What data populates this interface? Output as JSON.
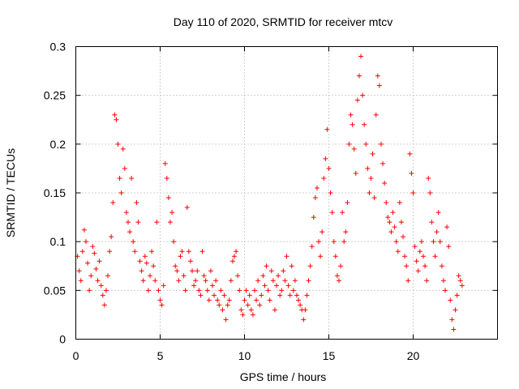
{
  "chart_data": {
    "type": "scatter",
    "title": "Day 110 of 2020, SRMTID for receiver mtcv",
    "xlabel": "GPS time / hours",
    "ylabel": "SRMTID / TECUs",
    "xlim": [
      0,
      25
    ],
    "ylim": [
      0,
      0.3
    ],
    "xticks": [
      0,
      5,
      10,
      15,
      20
    ],
    "xtick_labels": [
      "0",
      "5",
      "10",
      "15",
      "20"
    ],
    "yticks": [
      0,
      0.05,
      0.1,
      0.15,
      0.2,
      0.25,
      0.3
    ],
    "ytick_labels": [
      "0",
      "0.05",
      "0.1",
      "0.15",
      "0.2",
      "0.25",
      "0.3"
    ],
    "grid": true,
    "marker": "+",
    "color": "#ff0000",
    "series": [
      {
        "name": "SRMTID",
        "points": [
          [
            0.1,
            0.085
          ],
          [
            0.2,
            0.07
          ],
          [
            0.3,
            0.06
          ],
          [
            0.4,
            0.09
          ],
          [
            0.5,
            0.112
          ],
          [
            0.6,
            0.1
          ],
          [
            0.7,
            0.078
          ],
          [
            0.8,
            0.05
          ],
          [
            0.9,
            0.065
          ],
          [
            1.0,
            0.095
          ],
          [
            1.1,
            0.088
          ],
          [
            1.2,
            0.072
          ],
          [
            1.3,
            0.06
          ],
          [
            1.4,
            0.08
          ],
          [
            1.5,
            0.055
          ],
          [
            1.6,
            0.045
          ],
          [
            1.7,
            0.035
          ],
          [
            1.8,
            0.05
          ],
          [
            1.9,
            0.065
          ],
          [
            2.0,
            0.09
          ],
          [
            2.1,
            0.105
          ],
          [
            2.2,
            0.14
          ],
          [
            2.3,
            0.23
          ],
          [
            2.4,
            0.225
          ],
          [
            2.5,
            0.2
          ],
          [
            2.6,
            0.165
          ],
          [
            2.7,
            0.15
          ],
          [
            2.8,
            0.195
          ],
          [
            2.9,
            0.175
          ],
          [
            3.0,
            0.13
          ],
          [
            3.1,
            0.12
          ],
          [
            3.2,
            0.11
          ],
          [
            3.3,
            0.165
          ],
          [
            3.4,
            0.1
          ],
          [
            3.5,
            0.09
          ],
          [
            3.6,
            0.14
          ],
          [
            3.7,
            0.12
          ],
          [
            3.8,
            0.08
          ],
          [
            3.9,
            0.07
          ],
          [
            4.0,
            0.06
          ],
          [
            4.1,
            0.085
          ],
          [
            4.2,
            0.078
          ],
          [
            4.3,
            0.05
          ],
          [
            4.4,
            0.065
          ],
          [
            4.5,
            0.09
          ],
          [
            4.6,
            0.075
          ],
          [
            4.7,
            0.06
          ],
          [
            4.8,
            0.12
          ],
          [
            4.9,
            0.05
          ],
          [
            5.0,
            0.04
          ],
          [
            5.1,
            0.035
          ],
          [
            5.2,
            0.055
          ],
          [
            5.3,
            0.18
          ],
          [
            5.4,
            0.165
          ],
          [
            5.5,
            0.145
          ],
          [
            5.6,
            0.12
          ],
          [
            5.7,
            0.13
          ],
          [
            5.8,
            0.1
          ],
          [
            5.9,
            0.075
          ],
          [
            6.0,
            0.07
          ],
          [
            6.1,
            0.06
          ],
          [
            6.2,
            0.085
          ],
          [
            6.3,
            0.09
          ],
          [
            6.4,
            0.065
          ],
          [
            6.5,
            0.05
          ],
          [
            6.6,
            0.135
          ],
          [
            6.7,
            0.09
          ],
          [
            6.8,
            0.08
          ],
          [
            6.9,
            0.07
          ],
          [
            7.0,
            0.055
          ],
          [
            7.1,
            0.06
          ],
          [
            7.2,
            0.07
          ],
          [
            7.3,
            0.05
          ],
          [
            7.4,
            0.045
          ],
          [
            7.5,
            0.09
          ],
          [
            7.6,
            0.065
          ],
          [
            7.7,
            0.06
          ],
          [
            7.8,
            0.05
          ],
          [
            7.9,
            0.04
          ],
          [
            8.0,
            0.07
          ],
          [
            8.1,
            0.055
          ],
          [
            8.2,
            0.045
          ],
          [
            8.3,
            0.06
          ],
          [
            8.4,
            0.04
          ],
          [
            8.5,
            0.035
          ],
          [
            8.6,
            0.05
          ],
          [
            8.7,
            0.03
          ],
          [
            8.8,
            0.045
          ],
          [
            8.9,
            0.02
          ],
          [
            9.0,
            0.035
          ],
          [
            9.1,
            0.04
          ],
          [
            9.2,
            0.06
          ],
          [
            9.3,
            0.08
          ],
          [
            9.4,
            0.085
          ],
          [
            9.5,
            0.09
          ],
          [
            9.6,
            0.065
          ],
          [
            9.7,
            0.05
          ],
          [
            9.8,
            0.03
          ],
          [
            9.9,
            0.025
          ],
          [
            10.0,
            0.04
          ],
          [
            10.1,
            0.05
          ],
          [
            10.2,
            0.035
          ],
          [
            10.3,
            0.045
          ],
          [
            10.4,
            0.03
          ],
          [
            10.5,
            0.025
          ],
          [
            10.6,
            0.05
          ],
          [
            10.7,
            0.04
          ],
          [
            10.8,
            0.06
          ],
          [
            10.9,
            0.035
          ],
          [
            11.0,
            0.045
          ],
          [
            11.1,
            0.065
          ],
          [
            11.2,
            0.055
          ],
          [
            11.3,
            0.075
          ],
          [
            11.4,
            0.05
          ],
          [
            11.5,
            0.04
          ],
          [
            11.6,
            0.07
          ],
          [
            11.7,
            0.06
          ],
          [
            11.8,
            0.03
          ],
          [
            11.9,
            0.055
          ],
          [
            12.0,
            0.065
          ],
          [
            12.1,
            0.045
          ],
          [
            12.2,
            0.05
          ],
          [
            12.3,
            0.07
          ],
          [
            12.4,
            0.06
          ],
          [
            12.5,
            0.085
          ],
          [
            12.6,
            0.055
          ],
          [
            12.7,
            0.045
          ],
          [
            12.8,
            0.075
          ],
          [
            12.9,
            0.05
          ],
          [
            13.0,
            0.06
          ],
          [
            13.1,
            0.045
          ],
          [
            13.2,
            0.04
          ],
          [
            13.3,
            0.035
          ],
          [
            13.4,
            0.03
          ],
          [
            13.5,
            0.02
          ],
          [
            13.6,
            0.03
          ],
          [
            13.7,
            0.045
          ],
          [
            13.8,
            0.06
          ],
          [
            13.9,
            0.075
          ],
          [
            14.0,
            0.095
          ],
          [
            14.1,
            0.125
          ],
          [
            14.2,
            0.145
          ],
          [
            14.3,
            0.155
          ],
          [
            14.4,
            0.1
          ],
          [
            14.5,
            0.085
          ],
          [
            14.6,
            0.11
          ],
          [
            14.7,
            0.165
          ],
          [
            14.8,
            0.185
          ],
          [
            14.9,
            0.215
          ],
          [
            15.0,
            0.175
          ],
          [
            15.1,
            0.15
          ],
          [
            15.2,
            0.13
          ],
          [
            15.3,
            0.1
          ],
          [
            15.4,
            0.085
          ],
          [
            15.5,
            0.065
          ],
          [
            15.6,
            0.06
          ],
          [
            15.7,
            0.075
          ],
          [
            15.8,
            0.13
          ],
          [
            15.9,
            0.1
          ],
          [
            16.0,
            0.11
          ],
          [
            16.1,
            0.14
          ],
          [
            16.2,
            0.2
          ],
          [
            16.3,
            0.23
          ],
          [
            16.4,
            0.22
          ],
          [
            16.5,
            0.195
          ],
          [
            16.6,
            0.17
          ],
          [
            16.7,
            0.245
          ],
          [
            16.8,
            0.27
          ],
          [
            16.9,
            0.29
          ],
          [
            17.0,
            0.25
          ],
          [
            17.1,
            0.22
          ],
          [
            17.2,
            0.2
          ],
          [
            17.3,
            0.175
          ],
          [
            17.4,
            0.15
          ],
          [
            17.5,
            0.165
          ],
          [
            17.6,
            0.19
          ],
          [
            17.7,
            0.145
          ],
          [
            17.8,
            0.23
          ],
          [
            17.9,
            0.27
          ],
          [
            18.0,
            0.26
          ],
          [
            18.1,
            0.2
          ],
          [
            18.2,
            0.18
          ],
          [
            18.3,
            0.16
          ],
          [
            18.4,
            0.14
          ],
          [
            18.5,
            0.125
          ],
          [
            18.6,
            0.12
          ],
          [
            18.7,
            0.11
          ],
          [
            18.8,
            0.13
          ],
          [
            18.9,
            0.115
          ],
          [
            19.0,
            0.1
          ],
          [
            19.1,
            0.09
          ],
          [
            19.2,
            0.14
          ],
          [
            19.3,
            0.12
          ],
          [
            19.4,
            0.105
          ],
          [
            19.5,
            0.085
          ],
          [
            19.6,
            0.075
          ],
          [
            19.7,
            0.06
          ],
          [
            19.8,
            0.19
          ],
          [
            19.9,
            0.17
          ],
          [
            20.0,
            0.15
          ],
          [
            20.1,
            0.095
          ],
          [
            20.2,
            0.08
          ],
          [
            20.3,
            0.07
          ],
          [
            20.4,
            0.09
          ],
          [
            20.5,
            0.1
          ],
          [
            20.6,
            0.085
          ],
          [
            20.7,
            0.075
          ],
          [
            20.8,
            0.06
          ],
          [
            20.9,
            0.165
          ],
          [
            21.0,
            0.15
          ],
          [
            21.1,
            0.12
          ],
          [
            21.2,
            0.1
          ],
          [
            21.3,
            0.085
          ],
          [
            21.4,
            0.11
          ],
          [
            21.5,
            0.13
          ],
          [
            21.6,
            0.1
          ],
          [
            21.7,
            0.075
          ],
          [
            21.8,
            0.06
          ],
          [
            21.9,
            0.05
          ],
          [
            22.0,
            0.115
          ],
          [
            22.1,
            0.095
          ],
          [
            22.2,
            0.04
          ],
          [
            22.3,
            0.02
          ],
          [
            22.4,
            0.01
          ],
          [
            22.5,
            0.03
          ],
          [
            22.6,
            0.045
          ],
          [
            22.7,
            0.065
          ],
          [
            22.8,
            0.06
          ],
          [
            22.9,
            0.055
          ]
        ]
      }
    ]
  }
}
